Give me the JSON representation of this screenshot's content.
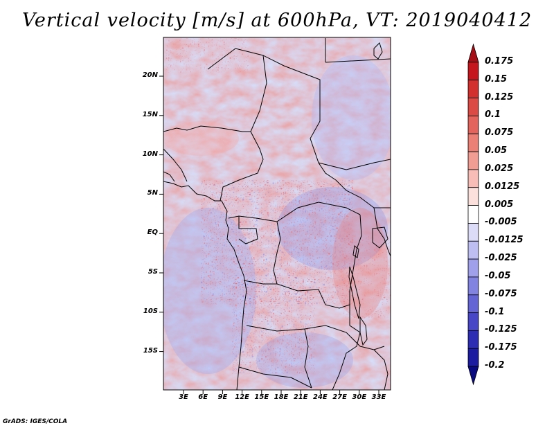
{
  "title": "Vertical velocity [m/s] at 600hPa, VT: 2019040412",
  "footer": "GrADS: IGES/COLA",
  "map": {
    "lat_labels": [
      "20N",
      "15N",
      "10N",
      "5N",
      "EQ",
      "5S",
      "10S",
      "15S"
    ],
    "lon_labels": [
      "3E",
      "6E",
      "9E",
      "12E",
      "15E",
      "18E",
      "21E",
      "24E",
      "27E",
      "30E",
      "33E"
    ],
    "lon_range": [
      0,
      35
    ],
    "lat_range": [
      -20,
      24.5
    ]
  },
  "colorbar": {
    "labels": [
      "0.175",
      "0.15",
      "0.125",
      "0.1",
      "0.075",
      "0.05",
      "0.025",
      "0.0125",
      "0.005",
      "-0.005",
      "-0.0125",
      "-0.025",
      "-0.05",
      "-0.075",
      "-0.1",
      "-0.125",
      "-0.175",
      "-0.2"
    ],
    "colors": [
      "#a50f15",
      "#c4161c",
      "#d2302f",
      "#dc4a45",
      "#e3645c",
      "#ea8076",
      "#f19d94",
      "#f7bdb6",
      "#fbe0dc",
      "#ffffff",
      "#dcdcf8",
      "#bebef2",
      "#a0a0ea",
      "#8282e0",
      "#6464d4",
      "#4646c6",
      "#2d2db4",
      "#1c1ca0",
      "#0a0a80"
    ]
  }
}
